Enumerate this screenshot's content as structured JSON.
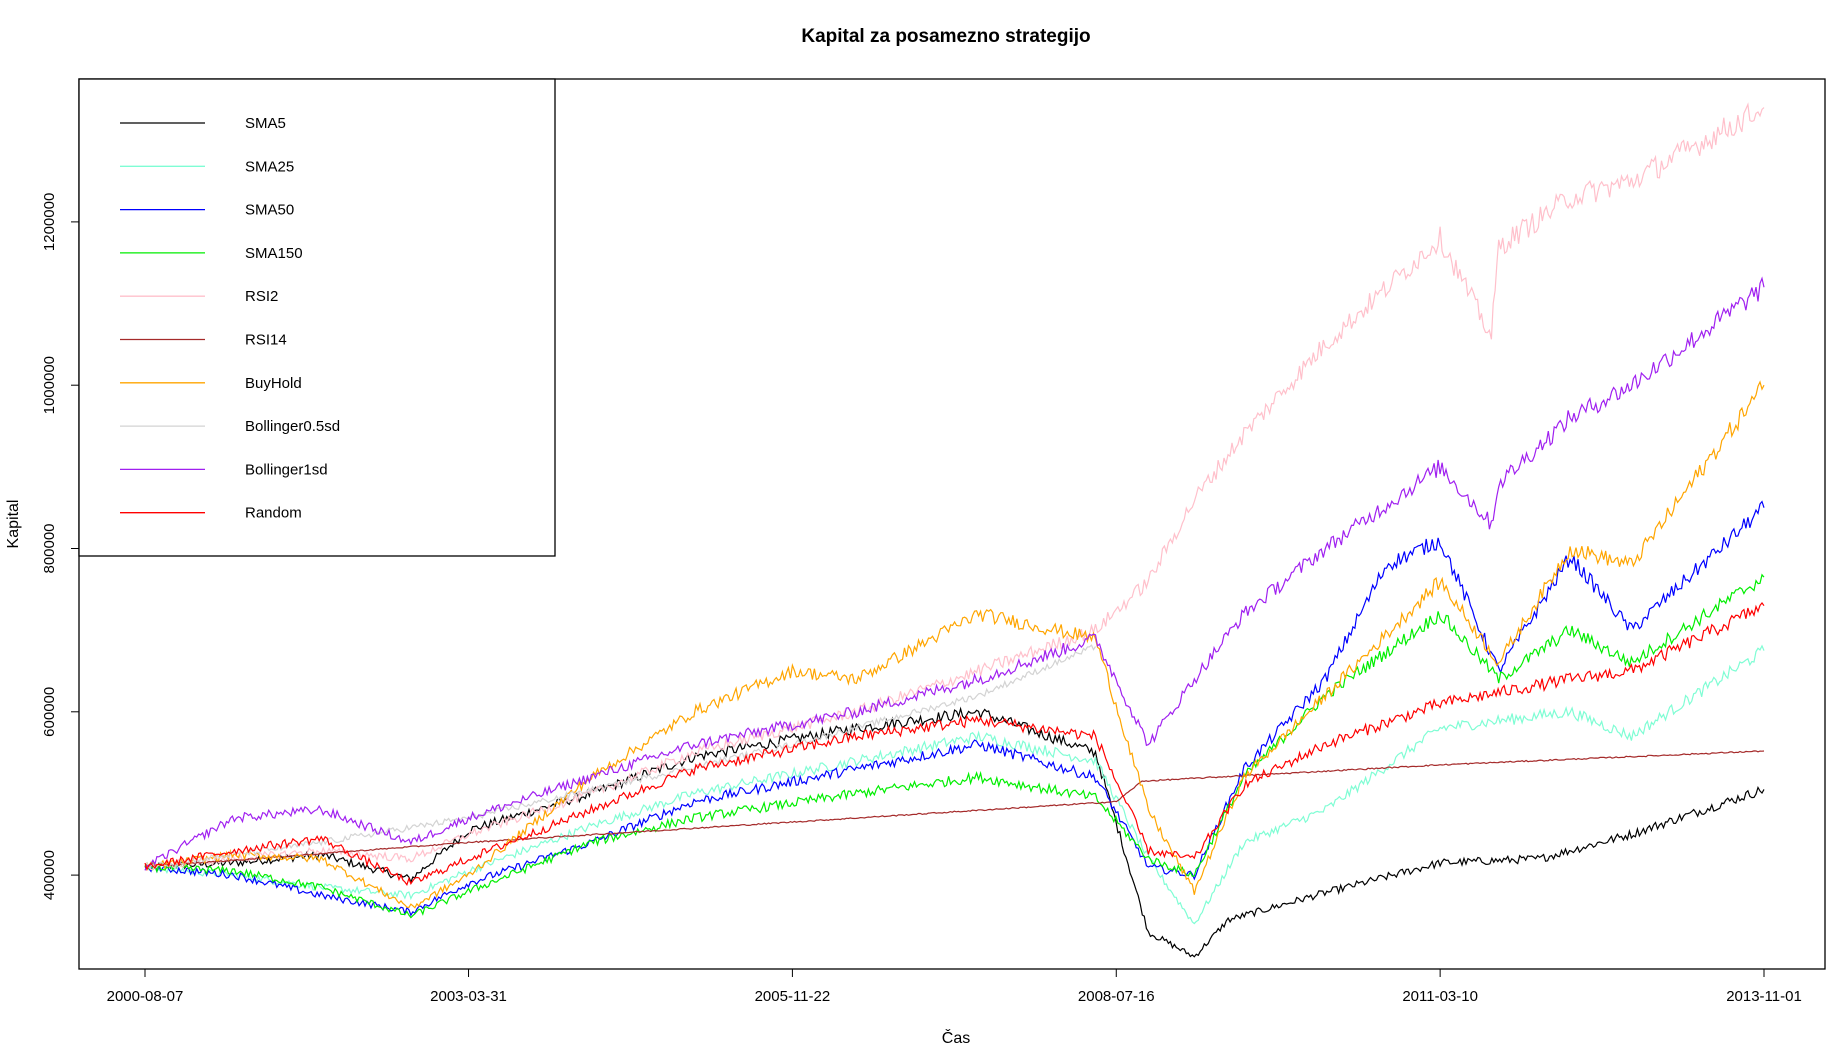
{
  "chart_data": {
    "type": "line",
    "title": "Kapital za posamezno strategijo",
    "xlabel": "Čas",
    "ylabel": "Kapital",
    "x_ticks": [
      "2000-08-07",
      "2003-03-31",
      "2005-11-22",
      "2008-07-16",
      "2011-03-10",
      "2013-11-01"
    ],
    "y_ticks": [
      400000,
      600000,
      800000,
      1000000,
      1200000
    ],
    "ylim": [
      285000,
      1375000
    ],
    "x_range": [
      "2000-08-07",
      "2013-11-01"
    ],
    "grid": false,
    "legend_position": "top-left",
    "series": [
      {
        "name": "SMA5",
        "color": "#000000",
        "x": [
          "2000-08-07",
          "2001-05-01",
          "2002-01-15",
          "2002-10-10",
          "2003-03-31",
          "2004-04-01",
          "2005-02-01",
          "2006-06-01",
          "2007-06-01",
          "2008-05-15",
          "2008-10-20",
          "2009-03-06",
          "2009-06-15",
          "2010-03-01",
          "2011-03-10",
          "2012-01-01",
          "2012-10-01",
          "2013-11-01"
        ],
        "values": [
          410000,
          415000,
          425000,
          395000,
          455000,
          500000,
          545000,
          580000,
          600000,
          550000,
          330000,
          300000,
          345000,
          375000,
          415000,
          420000,
          450000,
          505000
        ]
      },
      {
        "name": "SMA25",
        "color": "#7ffdd4",
        "x": [
          "2000-08-07",
          "2001-05-01",
          "2002-01-15",
          "2002-10-10",
          "2003-03-31",
          "2004-04-01",
          "2005-02-01",
          "2006-06-01",
          "2007-06-01",
          "2008-05-15",
          "2008-10-20",
          "2009-03-06",
          "2009-08-01",
          "2010-04-01",
          "2011-03-10",
          "2012-04-01",
          "2012-10-01",
          "2013-11-01"
        ],
        "values": [
          410000,
          400000,
          385000,
          375000,
          405000,
          460000,
          500000,
          540000,
          570000,
          540000,
          420000,
          340000,
          440000,
          480000,
          580000,
          600000,
          570000,
          675000
        ]
      },
      {
        "name": "SMA50",
        "color": "#0000ff",
        "x": [
          "2000-08-07",
          "2001-05-01",
          "2002-01-15",
          "2002-10-10",
          "2003-03-31",
          "2004-04-01",
          "2005-02-01",
          "2006-06-01",
          "2007-06-01",
          "2008-05-15",
          "2008-10-20",
          "2009-03-06",
          "2009-08-01",
          "2010-04-01",
          "2010-10-01",
          "2011-03-10",
          "2011-09-01",
          "2012-04-01",
          "2012-10-01",
          "2013-11-01"
        ],
        "values": [
          410000,
          400000,
          375000,
          355000,
          390000,
          440000,
          490000,
          530000,
          560000,
          520000,
          410000,
          400000,
          530000,
          640000,
          780000,
          810000,
          650000,
          790000,
          700000,
          850000
        ]
      },
      {
        "name": "SMA150",
        "color": "#00ee00",
        "x": [
          "2000-08-07",
          "2001-05-01",
          "2002-01-15",
          "2002-10-10",
          "2003-03-31",
          "2004-04-01",
          "2005-02-01",
          "2006-06-01",
          "2007-06-01",
          "2008-05-15",
          "2008-10-20",
          "2009-03-06",
          "2009-08-01",
          "2010-04-01",
          "2011-03-10",
          "2011-09-01",
          "2012-04-01",
          "2012-10-01",
          "2013-11-01"
        ],
        "values": [
          410000,
          405000,
          385000,
          350000,
          380000,
          440000,
          470000,
          500000,
          520000,
          495000,
          420000,
          400000,
          520000,
          620000,
          720000,
          640000,
          700000,
          660000,
          765000
        ]
      },
      {
        "name": "RSI2",
        "color": "#ffc0cb",
        "x": [
          "2000-08-07",
          "2001-05-01",
          "2002-01-15",
          "2002-10-10",
          "2003-03-31",
          "2004-04-01",
          "2005-02-01",
          "2006-06-01",
          "2007-06-01",
          "2008-05-15",
          "2008-10-20",
          "2009-03-06",
          "2009-08-01",
          "2010-04-01",
          "2011-03-10",
          "2011-08-10",
          "2011-09-01",
          "2012-04-01",
          "2012-10-01",
          "2013-11-01"
        ],
        "values": [
          410000,
          420000,
          430000,
          420000,
          450000,
          500000,
          550000,
          600000,
          650000,
          700000,
          760000,
          860000,
          940000,
          1050000,
          1180000,
          1060000,
          1170000,
          1230000,
          1250000,
          1340000
        ]
      },
      {
        "name": "RSI14",
        "color": "#a52a2a",
        "x": [
          "2000-08-07",
          "2003-03-31",
          "2005-11-22",
          "2008-07-16",
          "2008-10-01",
          "2011-03-10",
          "2013-11-01"
        ],
        "values": [
          410000,
          440000,
          465000,
          490000,
          515000,
          535000,
          552000
        ]
      },
      {
        "name": "BuyHold",
        "color": "#ffa500",
        "x": [
          "2000-08-07",
          "2001-05-01",
          "2002-01-15",
          "2002-10-10",
          "2003-03-31",
          "2004-04-01",
          "2005-02-01",
          "2005-11-22",
          "2006-06-01",
          "2007-06-01",
          "2008-05-15",
          "2008-10-20",
          "2009-03-06",
          "2009-08-01",
          "2010-04-01",
          "2011-03-10",
          "2011-09-01",
          "2012-04-01",
          "2012-10-01",
          "2013-11-01"
        ],
        "values": [
          410000,
          425000,
          420000,
          360000,
          400000,
          520000,
          600000,
          650000,
          640000,
          720000,
          690000,
          480000,
          380000,
          520000,
          620000,
          760000,
          660000,
          800000,
          780000,
          1000000
        ]
      },
      {
        "name": "Bollinger0.5sd",
        "color": "#d3d3d3",
        "x": [
          "2000-08-07",
          "2002-01-15",
          "2003-03-31",
          "2005-11-22",
          "2007-06-01",
          "2008-05-15"
        ],
        "values": [
          410000,
          440000,
          470000,
          560000,
          620000,
          680000
        ]
      },
      {
        "name": "Bollinger1sd",
        "color": "#a020f0",
        "x": [
          "2000-08-07",
          "2001-05-01",
          "2002-01-15",
          "2002-10-10",
          "2003-03-31",
          "2004-04-01",
          "2005-02-01",
          "2006-06-01",
          "2007-06-01",
          "2008-05-15",
          "2008-10-20",
          "2009-03-06",
          "2009-08-01",
          "2010-04-01",
          "2011-03-10",
          "2011-08-10",
          "2011-09-01",
          "2012-04-01",
          "2012-10-01",
          "2013-11-01"
        ],
        "values": [
          410000,
          470000,
          480000,
          440000,
          470000,
          520000,
          560000,
          600000,
          640000,
          690000,
          560000,
          640000,
          720000,
          800000,
          900000,
          830000,
          880000,
          960000,
          1000000,
          1120000
        ]
      },
      {
        "name": "Random",
        "color": "#ff0000",
        "x": [
          "2000-08-07",
          "2001-05-01",
          "2002-01-15",
          "2002-10-10",
          "2003-03-31",
          "2004-04-01",
          "2005-02-01",
          "2006-06-01",
          "2007-06-01",
          "2008-05-15",
          "2008-10-20",
          "2009-03-06",
          "2009-08-01",
          "2010-04-01",
          "2011-03-10",
          "2012-04-01",
          "2012-10-01",
          "2013-11-01"
        ],
        "values": [
          410000,
          430000,
          445000,
          390000,
          420000,
          480000,
          530000,
          570000,
          590000,
          570000,
          430000,
          420000,
          510000,
          560000,
          610000,
          640000,
          650000,
          730000
        ]
      }
    ]
  }
}
